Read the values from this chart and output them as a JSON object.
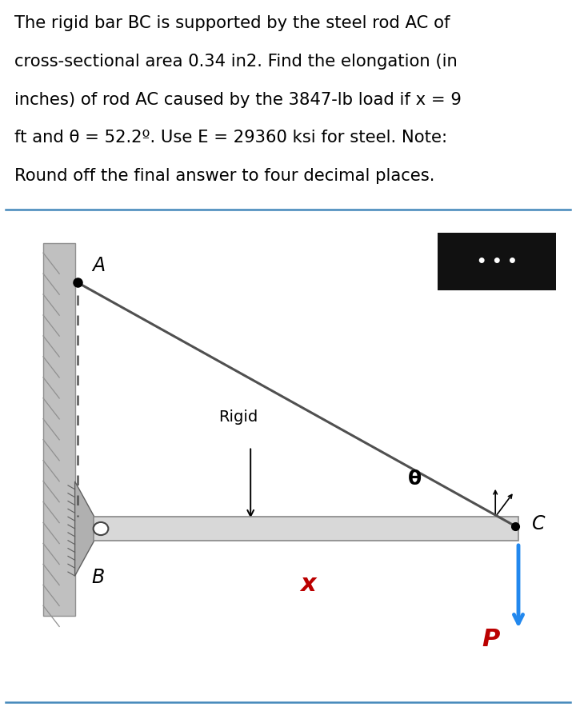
{
  "text_line1": "The rigid bar BC is supported by the steel rod AC of",
  "text_line2": "cross-sectional area 0.34 in2. Find the elongation (in",
  "text_line3": "inches) of rod AC caused by the 3847-lb load if x = 9",
  "text_line4": "ft and θ = 52.2º. Use E = 29360 ksi for steel. Note:",
  "text_line5": "Round off the final answer to four decimal places.",
  "bg_color": "#ffffff",
  "text_color": "#000000",
  "fig_width": 7.2,
  "fig_height": 8.94,
  "wall_color": "#c0c0c0",
  "wall_color2": "#a8a8a8",
  "bar_color": "#d8d8d8",
  "bar_edge": "#888888",
  "rod_color": "#505050",
  "dashed_color": "#555555",
  "label_A": "A",
  "label_B": "B",
  "label_C": "C",
  "label_Rigid": "Rigid",
  "label_x": "x",
  "label_theta": "θ",
  "label_P": "P",
  "dots_box_color": "#111111",
  "arrow_color": "#2288ee",
  "P_color": "#bb0000",
  "x_color": "#bb0000",
  "divider_blue": "#4488bb",
  "hinge_color": "#b0b0b0",
  "hinge_edge": "#606060"
}
